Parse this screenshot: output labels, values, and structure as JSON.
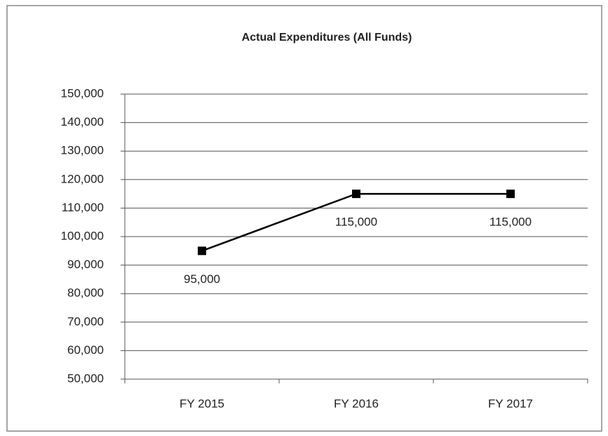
{
  "chart_data": {
    "type": "line",
    "title": "Actual Expenditures (All Funds)",
    "categories": [
      "FY 2015",
      "FY 2016",
      "FY 2017"
    ],
    "values": [
      95000,
      115000,
      115000
    ],
    "value_labels": [
      "95,000",
      "115,000",
      "115,000"
    ],
    "color": "#000000",
    "ylim": [
      50000,
      150000
    ],
    "yticks": [
      {
        "value": 50000,
        "label": "50,000"
      },
      {
        "value": 60000,
        "label": "60,000"
      },
      {
        "value": 70000,
        "label": "70,000"
      },
      {
        "value": 80000,
        "label": "80,000"
      },
      {
        "value": 90000,
        "label": "90,000"
      },
      {
        "value": 100000,
        "label": "100,000"
      },
      {
        "value": 110000,
        "label": "110,000"
      },
      {
        "value": 120000,
        "label": "120,000"
      },
      {
        "value": 130000,
        "label": "130,000"
      },
      {
        "value": 140000,
        "label": "140,000"
      },
      {
        "value": 150000,
        "label": "150,000"
      }
    ],
    "grid": true
  }
}
